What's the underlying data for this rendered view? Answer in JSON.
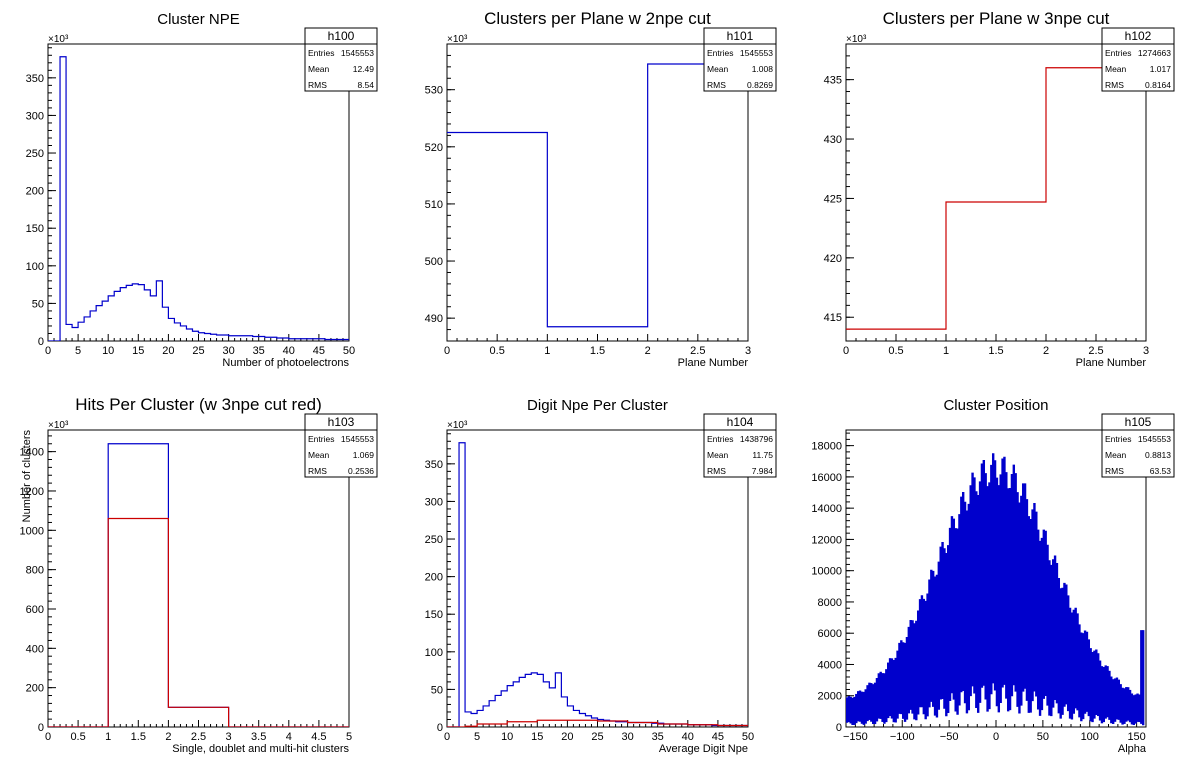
{
  "chart_data": [
    {
      "id": "h100",
      "type": "histogram",
      "title": "Cluster NPE",
      "xlabel": "Number of photoelectrons",
      "ylabel": "",
      "exponent": "×10³",
      "xlim": [
        0,
        50
      ],
      "ylim": [
        0,
        395
      ],
      "xticks": [
        0,
        5,
        10,
        15,
        20,
        25,
        30,
        35,
        40,
        45,
        50
      ],
      "yticks": [
        0,
        50,
        100,
        150,
        200,
        250,
        300,
        350
      ],
      "stats": {
        "name": "h100",
        "entries": "1545553",
        "mean": "12.49",
        "rms": "8.54"
      },
      "series": [
        {
          "color": "#0000cc",
          "bin_edges": [
            0,
            2,
            3,
            4,
            5,
            6,
            7,
            8,
            9,
            10,
            11,
            12,
            13,
            14,
            15,
            16,
            17,
            18,
            19,
            20,
            21,
            22,
            23,
            24,
            25,
            26,
            27,
            28,
            29,
            30,
            32,
            34,
            36,
            38,
            40,
            42,
            44,
            46,
            48,
            50
          ],
          "values": [
            0,
            378,
            22,
            18,
            25,
            32,
            40,
            47,
            53,
            60,
            66,
            71,
            74,
            76,
            75,
            68,
            60,
            80,
            45,
            30,
            24,
            20,
            16,
            13,
            11,
            10,
            9,
            8,
            8,
            7,
            7,
            6,
            5,
            4,
            3,
            3,
            3,
            2,
            2
          ]
        }
      ]
    },
    {
      "id": "h101",
      "type": "histogram",
      "title": "Clusters per Plane w 2npe cut",
      "xlabel": "Plane Number",
      "ylabel": "",
      "exponent": "×10³",
      "xlim": [
        0,
        3
      ],
      "ylim": [
        486,
        538
      ],
      "xticks": [
        0,
        0.5,
        1,
        1.5,
        2,
        2.5,
        3
      ],
      "yticks": [
        490,
        500,
        510,
        520,
        530
      ],
      "stats": {
        "name": "h101",
        "entries": "1545553",
        "mean": "1.008",
        "rms": "0.8269"
      },
      "series": [
        {
          "color": "#0000cc",
          "bin_edges": [
            0,
            1,
            2,
            3
          ],
          "values": [
            522.5,
            488.5,
            534.5
          ]
        }
      ]
    },
    {
      "id": "h102",
      "type": "histogram",
      "title": "Clusters per Plane w 3npe cut",
      "xlabel": "Plane Number",
      "ylabel": "",
      "exponent": "×10³",
      "xlim": [
        0,
        3
      ],
      "ylim": [
        413,
        438
      ],
      "xticks": [
        0,
        0.5,
        1,
        1.5,
        2,
        2.5,
        3
      ],
      "yticks": [
        415,
        420,
        425,
        430,
        435
      ],
      "stats": {
        "name": "h102",
        "entries": "1274663",
        "mean": "1.017",
        "rms": "0.8164"
      },
      "series": [
        {
          "color": "#cc0000",
          "bin_edges": [
            0,
            1,
            2,
            3
          ],
          "values": [
            414,
            424.7,
            436
          ]
        }
      ]
    },
    {
      "id": "h103",
      "type": "histogram",
      "title": "Hits Per Cluster (w 3npe cut red)",
      "xlabel": "Single, doublet and multi-hit clusters",
      "ylabel": "Number of clusters",
      "exponent": "×10³",
      "xlim": [
        0,
        5
      ],
      "ylim": [
        0,
        1510
      ],
      "xticks": [
        0,
        0.5,
        1,
        1.5,
        2,
        2.5,
        3,
        3.5,
        4,
        4.5,
        5
      ],
      "yticks": [
        0,
        200,
        400,
        600,
        800,
        1000,
        1200,
        1400
      ],
      "stats": {
        "name": "h103",
        "entries": "1545553",
        "mean": "1.069",
        "rms": "0.2536"
      },
      "series": [
        {
          "color": "#0000cc",
          "bin_edges": [
            0,
            1,
            2,
            3,
            5
          ],
          "values": [
            0,
            1440,
            100,
            0
          ]
        },
        {
          "color": "#cc0000",
          "bin_edges": [
            0,
            1,
            2,
            3,
            5
          ],
          "values": [
            0,
            1060,
            100,
            0
          ]
        }
      ]
    },
    {
      "id": "h104",
      "type": "histogram",
      "title": "Digit Npe Per Cluster",
      "xlabel": "Average Digit Npe",
      "ylabel": "",
      "exponent": "×10³",
      "xlim": [
        0,
        50
      ],
      "ylim": [
        0,
        395
      ],
      "xticks": [
        0,
        5,
        10,
        15,
        20,
        25,
        30,
        35,
        40,
        45,
        50
      ],
      "yticks": [
        0,
        50,
        100,
        150,
        200,
        250,
        300,
        350
      ],
      "stats": {
        "name": "h104",
        "entries": "1438796",
        "mean": "11.75",
        "rms": "7.984"
      },
      "series": [
        {
          "color": "#0000cc",
          "bin_edges": [
            0,
            2,
            3,
            4,
            5,
            6,
            7,
            8,
            9,
            10,
            11,
            12,
            13,
            14,
            15,
            16,
            17,
            18,
            19,
            20,
            21,
            22,
            23,
            24,
            25,
            26,
            27,
            28,
            29,
            30,
            32,
            34,
            36,
            38,
            40,
            42,
            44,
            46,
            48,
            50
          ],
          "values": [
            0,
            378,
            20,
            18,
            22,
            28,
            35,
            42,
            48,
            55,
            60,
            66,
            70,
            72,
            70,
            60,
            52,
            72,
            40,
            28,
            22,
            18,
            15,
            12,
            10,
            9,
            8,
            7,
            7,
            6,
            6,
            5,
            4,
            4,
            3,
            3,
            2,
            2,
            2
          ]
        },
        {
          "color": "#cc0000",
          "bin_edges": [
            0,
            3,
            5,
            10,
            15,
            20,
            25,
            30,
            35,
            40,
            45,
            50
          ],
          "values": [
            0,
            1,
            4,
            7,
            9,
            9,
            8,
            6,
            4,
            3,
            2
          ]
        }
      ]
    },
    {
      "id": "h105",
      "type": "histogram",
      "title": "Cluster Position",
      "xlabel": "Alpha",
      "ylabel": "",
      "exponent": "",
      "xlim": [
        -160,
        160
      ],
      "ylim": [
        0,
        19000
      ],
      "xticks": [
        -150,
        -100,
        -50,
        0,
        50,
        100,
        150
      ],
      "yticks": [
        0,
        2000,
        4000,
        6000,
        8000,
        10000,
        12000,
        14000,
        16000,
        18000
      ],
      "stats": {
        "name": "h105",
        "entries": "1545553",
        "mean": "0.8813",
        "rms": "63.53"
      },
      "series": [
        {
          "color": "#0000cc",
          "style": "comb",
          "center": 0,
          "sigma": 62,
          "peak": 17200,
          "base": 1300,
          "edge_spike": 6200
        }
      ]
    }
  ],
  "stats_labels": {
    "entries": "Entries",
    "mean": "Mean",
    "rms": "RMS"
  }
}
